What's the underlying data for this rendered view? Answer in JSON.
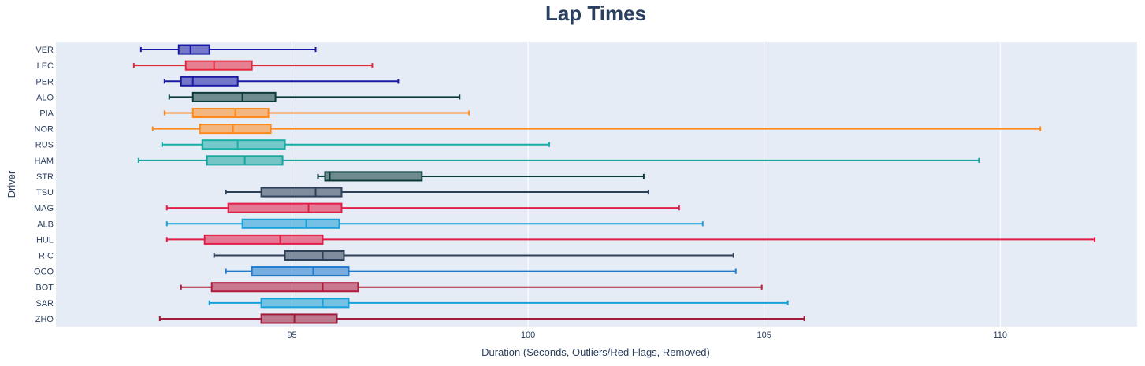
{
  "chart_data": {
    "type": "box",
    "orientation": "horizontal",
    "title": "Lap Times",
    "xlabel": "Duration (Seconds, Outliers/Red Flags, Removed)",
    "ylabel": "Driver",
    "xlim": [
      90.0,
      112.9
    ],
    "xticks": [
      95,
      100,
      105,
      110
    ],
    "xtick_labels": [
      "95",
      "100",
      "105",
      "110"
    ],
    "grid": true,
    "legend": false,
    "categories": [
      "VER",
      "LEC",
      "PER",
      "ALO",
      "PIA",
      "NOR",
      "RUS",
      "HAM",
      "STR",
      "TSU",
      "MAG",
      "ALB",
      "HUL",
      "RIC",
      "OCO",
      "BOT",
      "SAR",
      "ZHO"
    ],
    "series": [
      {
        "category": "VER",
        "min": 91.8,
        "q1": 92.6,
        "median": 92.85,
        "q3": 93.25,
        "max": 95.5,
        "color": "#1a1aa6"
      },
      {
        "category": "LEC",
        "min": 91.65,
        "q1": 92.75,
        "median": 93.35,
        "q3": 94.15,
        "max": 96.7,
        "color": "#e8283c"
      },
      {
        "category": "PER",
        "min": 92.3,
        "q1": 92.65,
        "median": 92.9,
        "q3": 93.85,
        "max": 97.25,
        "color": "#1a1aa6"
      },
      {
        "category": "ALO",
        "min": 92.4,
        "q1": 92.9,
        "median": 93.95,
        "q3": 94.65,
        "max": 98.55,
        "color": "#0c3c3a"
      },
      {
        "category": "PIA",
        "min": 92.3,
        "q1": 92.9,
        "median": 93.8,
        "q3": 94.5,
        "max": 98.75,
        "color": "#ff8a1c"
      },
      {
        "category": "NOR",
        "min": 92.05,
        "q1": 93.05,
        "median": 93.75,
        "q3": 94.55,
        "max": 110.85,
        "color": "#ff8a1c"
      },
      {
        "category": "RUS",
        "min": 92.25,
        "q1": 93.1,
        "median": 93.85,
        "q3": 94.85,
        "max": 100.45,
        "color": "#1aada6"
      },
      {
        "category": "HAM",
        "min": 91.75,
        "q1": 93.2,
        "median": 94.0,
        "q3": 94.8,
        "max": 109.55,
        "color": "#1aa6a0"
      },
      {
        "category": "STR",
        "min": 95.55,
        "q1": 95.7,
        "median": 95.8,
        "q3": 97.75,
        "max": 102.45,
        "color": "#0c3c3a"
      },
      {
        "category": "TSU",
        "min": 93.6,
        "q1": 94.35,
        "median": 95.5,
        "q3": 96.05,
        "max": 102.55,
        "color": "#2e4057"
      },
      {
        "category": "MAG",
        "min": 92.35,
        "q1": 93.65,
        "median": 95.35,
        "q3": 96.05,
        "max": 103.2,
        "color": "#e01e46"
      },
      {
        "category": "ALB",
        "min": 92.35,
        "q1": 93.95,
        "median": 95.3,
        "q3": 96.0,
        "max": 103.7,
        "color": "#1a9fd8"
      },
      {
        "category": "HUL",
        "min": 92.35,
        "q1": 93.15,
        "median": 94.75,
        "q3": 95.65,
        "max": 112.0,
        "color": "#e01e46"
      },
      {
        "category": "RIC",
        "min": 93.35,
        "q1": 94.85,
        "median": 95.65,
        "q3": 96.1,
        "max": 104.35,
        "color": "#2e4057"
      },
      {
        "category": "OCO",
        "min": 93.6,
        "q1": 94.15,
        "median": 95.45,
        "q3": 96.2,
        "max": 104.4,
        "color": "#1f78c8"
      },
      {
        "category": "BOT",
        "min": 92.65,
        "q1": 93.3,
        "median": 95.65,
        "q3": 96.4,
        "max": 104.95,
        "color": "#b01c3a"
      },
      {
        "category": "SAR",
        "min": 93.25,
        "q1": 94.35,
        "median": 95.65,
        "q3": 96.2,
        "max": 105.5,
        "color": "#16a0d8"
      },
      {
        "category": "ZHO",
        "min": 92.2,
        "q1": 94.35,
        "median": 95.05,
        "q3": 95.95,
        "max": 105.85,
        "color": "#a01c3a"
      }
    ]
  }
}
